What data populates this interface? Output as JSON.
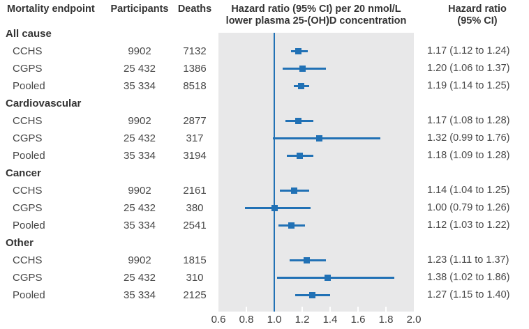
{
  "header": {
    "endpoint": "Mortality endpoint",
    "participants": "Participants",
    "deaths": "Deaths",
    "plot_line1": "Hazard ratio (95% CI) per 20 nmol/L",
    "plot_line2": "lower plasma 25-(OH)D concentration",
    "hr_line1": "Hazard ratio",
    "hr_line2": "(95% CI)"
  },
  "colors": {
    "accent_blue": "#2171b5",
    "plot_background": "#e8e8e9",
    "tick_white": "#ffffff",
    "text_dark": "#333333",
    "text_body": "#474747"
  },
  "chart_data": {
    "type": "forest",
    "title": "Hazard ratio (95% CI) per 20 nmol/L lower plasma 25-(OH)D concentration",
    "xlim": [
      0.6,
      2.0
    ],
    "reference_line": 1.0,
    "tick_labels": [
      "0.6",
      "0.8",
      "1.0",
      "1.2",
      "1.4",
      "1.6",
      "1.8",
      "2.0"
    ],
    "inner_ticks": [
      0.8,
      1.0,
      1.2,
      1.4,
      1.6,
      1.8
    ],
    "grid": false,
    "groups": [
      {
        "label": "All cause",
        "rows": [
          {
            "label": "CCHS",
            "participants": "9902",
            "deaths": "7132",
            "hr": 1.17,
            "lo": 1.12,
            "hi": 1.24,
            "hr_text": "1.17 (1.12 to 1.24)"
          },
          {
            "label": "CGPS",
            "participants": "25 432",
            "deaths": "1386",
            "hr": 1.2,
            "lo": 1.06,
            "hi": 1.37,
            "hr_text": "1.20 (1.06 to 1.37)"
          },
          {
            "label": "Pooled",
            "participants": "35 334",
            "deaths": "8518",
            "hr": 1.19,
            "lo": 1.14,
            "hi": 1.25,
            "hr_text": "1.19 (1.14 to 1.25)"
          }
        ]
      },
      {
        "label": "Cardiovascular",
        "rows": [
          {
            "label": "CCHS",
            "participants": "9902",
            "deaths": "2877",
            "hr": 1.17,
            "lo": 1.08,
            "hi": 1.28,
            "hr_text": "1.17 (1.08 to 1.28)"
          },
          {
            "label": "CGPS",
            "participants": "25 432",
            "deaths": "317",
            "hr": 1.32,
            "lo": 0.99,
            "hi": 1.76,
            "hr_text": "1.32 (0.99 to 1.76)"
          },
          {
            "label": "Pooled",
            "participants": "35 334",
            "deaths": "3194",
            "hr": 1.18,
            "lo": 1.09,
            "hi": 1.28,
            "hr_text": "1.18 (1.09 to 1.28)"
          }
        ]
      },
      {
        "label": "Cancer",
        "rows": [
          {
            "label": "CCHS",
            "participants": "9902",
            "deaths": "2161",
            "hr": 1.14,
            "lo": 1.04,
            "hi": 1.25,
            "hr_text": "1.14 (1.04 to 1.25)"
          },
          {
            "label": "CGPS",
            "participants": "25 432",
            "deaths": "380",
            "hr": 1.0,
            "lo": 0.79,
            "hi": 1.26,
            "hr_text": "1.00 (0.79 to 1.26)"
          },
          {
            "label": "Pooled",
            "participants": "35 334",
            "deaths": "2541",
            "hr": 1.12,
            "lo": 1.03,
            "hi": 1.22,
            "hr_text": "1.12 (1.03 to 1.22)"
          }
        ]
      },
      {
        "label": "Other",
        "rows": [
          {
            "label": "CCHS",
            "participants": "9902",
            "deaths": "1815",
            "hr": 1.23,
            "lo": 1.11,
            "hi": 1.37,
            "hr_text": "1.23 (1.11 to 1.37)"
          },
          {
            "label": "CGPS",
            "participants": "25 432",
            "deaths": "310",
            "hr": 1.38,
            "lo": 1.02,
            "hi": 1.86,
            "hr_text": "1.38 (1.02 to 1.86)"
          },
          {
            "label": "Pooled",
            "participants": "35 334",
            "deaths": "2125",
            "hr": 1.27,
            "lo": 1.15,
            "hi": 1.4,
            "hr_text": "1.27 (1.15 to 1.40)"
          }
        ]
      }
    ]
  }
}
